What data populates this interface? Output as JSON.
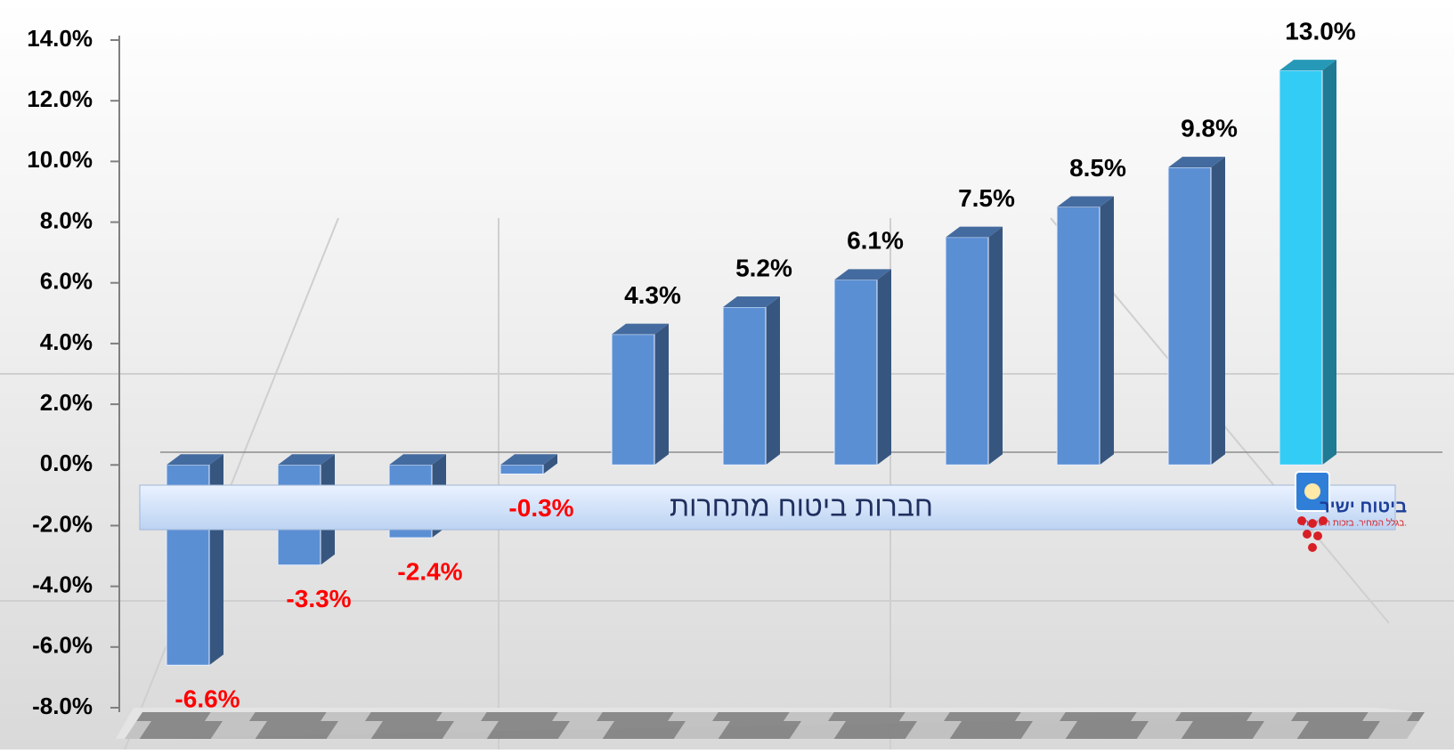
{
  "chart_data": {
    "type": "bar",
    "annotation": "חברות ביטוח מתחרות",
    "logo_name": "ביטוח ישיר",
    "logo_tagline": "בגלל המחיר. בזכות השירות.",
    "values": [
      -6.6,
      -3.3,
      -2.4,
      -0.3,
      4.3,
      5.2,
      6.1,
      7.5,
      8.5,
      9.8,
      13.0
    ],
    "value_labels": [
      "-6.6%",
      "-3.3%",
      "-2.4%",
      "-0.3%",
      "4.3%",
      "5.2%",
      "6.1%",
      "7.5%",
      "8.5%",
      "9.8%",
      "13.0%"
    ],
    "colors": [
      "#5b8fd4",
      "#5b8fd4",
      "#5b8fd4",
      "#5b8fd4",
      "#5b8fd4",
      "#5b8fd4",
      "#5b8fd4",
      "#5b8fd4",
      "#5b8fd4",
      "#5b8fd4",
      "#33ccf5"
    ],
    "negative_label_color": "#ff0000",
    "ylim": [
      -8,
      14
    ],
    "yticks": [
      {
        "value": -8,
        "label": "-8.0%"
      },
      {
        "value": -6,
        "label": "-6.0%"
      },
      {
        "value": -4,
        "label": "-4.0%"
      },
      {
        "value": -2,
        "label": "-2.0%"
      },
      {
        "value": 0,
        "label": "0.0%"
      },
      {
        "value": 2,
        "label": "2.0%"
      },
      {
        "value": 4,
        "label": "4.0%"
      },
      {
        "value": 6,
        "label": "6.0%"
      },
      {
        "value": 8,
        "label": "8.0%"
      },
      {
        "value": 10,
        "label": "10.0%"
      },
      {
        "value": 12,
        "label": "12.0%"
      },
      {
        "value": 14,
        "label": "14.0%"
      }
    ]
  }
}
